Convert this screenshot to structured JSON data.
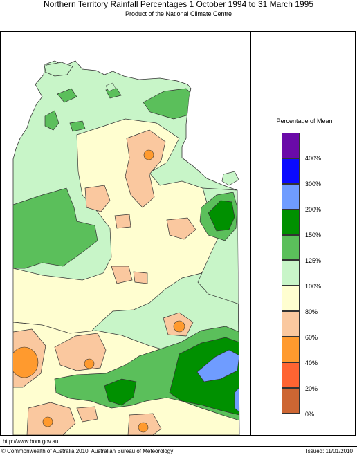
{
  "header": {
    "title": "Northern Territory Rainfall Percentages 1 October 1994 to 31 March 1995",
    "subtitle": "Product of the National Climate Centre"
  },
  "legend": {
    "title": "Percentage of Mean",
    "bins": [
      {
        "color": "#6a0aa8"
      },
      {
        "color": "#0a0aff"
      },
      {
        "color": "#6f9cff"
      },
      {
        "color": "#009000"
      },
      {
        "color": "#5bbf5b"
      },
      {
        "color": "#c8f5c8"
      },
      {
        "color": "#fffed0"
      },
      {
        "color": "#fac89f"
      },
      {
        "color": "#ff9a2e"
      },
      {
        "color": "#ff6432"
      },
      {
        "color": "#cd6633"
      }
    ],
    "ticks": [
      "400%",
      "300%",
      "200%",
      "150%",
      "125%",
      "100%",
      "80%",
      "60%",
      "40%",
      "20%",
      "0%"
    ]
  },
  "footer": {
    "url": "http://www.bom.gov.au",
    "copyright": "© Commonwealth of Australia 2010, Australian Bureau of Meteorology",
    "issued": "Issued: 11/01/2010"
  }
}
